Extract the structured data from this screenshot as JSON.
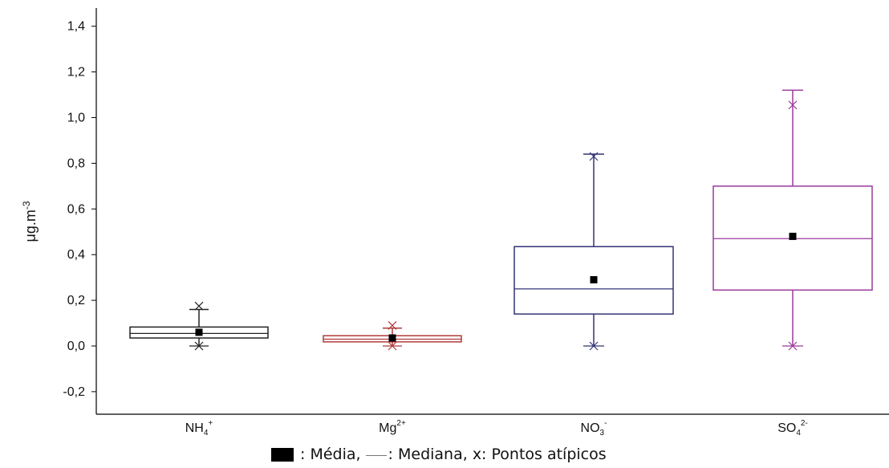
{
  "chart_data": {
    "type": "box",
    "ylabel": "μg.m",
    "ylabel_sup": "-3",
    "ylim": [
      -0.3,
      1.5
    ],
    "yticks": [
      "-0,2",
      "0,0",
      "0,2",
      "0,4",
      "0,6",
      "0,8",
      "1,0",
      "1,2",
      "1,4"
    ],
    "ytick_values": [
      -0.2,
      0.0,
      0.2,
      0.4,
      0.6,
      0.8,
      1.0,
      1.2,
      1.4
    ],
    "categories": [
      {
        "base": "NH",
        "sub": "4",
        "sup": "+"
      },
      {
        "base": "Mg",
        "sub": "",
        "sup": "2+"
      },
      {
        "base": "NO",
        "sub": "3",
        "sup": "-"
      },
      {
        "base": "SO",
        "sub": "4",
        "sup": "2-"
      }
    ],
    "boxes": [
      {
        "q1": 0.035,
        "median": 0.055,
        "q3": 0.083,
        "mean": 0.06,
        "whisker_low": 0.0,
        "whisker_high": 0.16,
        "outliers": [
          0.0,
          0.175
        ],
        "color": "#222222"
      },
      {
        "q1": 0.018,
        "median": 0.03,
        "q3": 0.045,
        "mean": 0.035,
        "whisker_low": 0.0,
        "whisker_high": 0.078,
        "outliers": [
          0.0,
          0.09
        ],
        "color": "#b03a3a"
      },
      {
        "q1": 0.14,
        "median": 0.25,
        "q3": 0.435,
        "mean": 0.29,
        "whisker_low": 0.0,
        "whisker_high": 0.84,
        "outliers": [
          0.0,
          0.83
        ],
        "color": "#333377"
      },
      {
        "q1": 0.245,
        "median": 0.47,
        "q3": 0.7,
        "mean": 0.48,
        "whisker_low": 0.0,
        "whisker_high": 1.12,
        "outliers": [
          0.0,
          1.055
        ],
        "color": "#9b3a9b"
      }
    ],
    "grid": false
  },
  "legend": {
    "mean_label": ": Média,",
    "median_label": ": Mediana, x: Pontos atípicos"
  }
}
